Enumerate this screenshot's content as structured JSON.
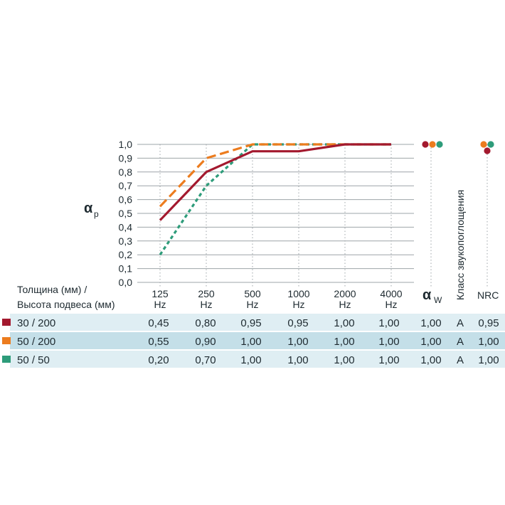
{
  "chart_data": {
    "type": "line",
    "ylabel": "α",
    "ylabel_sub": "p",
    "ylim": [
      0,
      1
    ],
    "y_ticks": [
      "0,0",
      "0,1",
      "0,2",
      "0,3",
      "0,4",
      "0,5",
      "0,6",
      "0,7",
      "0,8",
      "0,9",
      "1,0"
    ],
    "categories": [
      {
        "freq": "125",
        "unit": "Hz"
      },
      {
        "freq": "250",
        "unit": "Hz"
      },
      {
        "freq": "500",
        "unit": "Hz"
      },
      {
        "freq": "1000",
        "unit": "Hz"
      },
      {
        "freq": "2000",
        "unit": "Hz"
      },
      {
        "freq": "4000",
        "unit": "Hz"
      }
    ],
    "series": [
      {
        "name": "30 / 200",
        "color": "#a3192e",
        "dash": "solid",
        "values": [
          0.45,
          0.8,
          0.95,
          0.95,
          1.0,
          1.0
        ],
        "row": [
          "0,45",
          "0,80",
          "0,95",
          "0,95",
          "1,00",
          "1,00",
          "1,00",
          "A",
          "0,95"
        ]
      },
      {
        "name": "50 / 200",
        "color": "#ec7c1e",
        "dash": "dashed",
        "values": [
          0.55,
          0.9,
          1.0,
          1.0,
          1.0,
          1.0
        ],
        "row": [
          "0,55",
          "0,90",
          "1,00",
          "1,00",
          "1,00",
          "1,00",
          "1,00",
          "A",
          "1,00"
        ]
      },
      {
        "name": "50 / 50",
        "color": "#2e9c7a",
        "dash": "dotted",
        "values": [
          0.2,
          0.7,
          1.0,
          1.0,
          1.0,
          1.0
        ],
        "row": [
          "0,20",
          "0,70",
          "1,00",
          "1,00",
          "1,00",
          "1,00",
          "1,00",
          "A",
          "1,00"
        ]
      }
    ],
    "table_header": {
      "thickness_line1": "Толщина (мм) /",
      "thickness_line2": "Высота подвеса (мм)",
      "alpha_w": "α",
      "alpha_w_sub": "W",
      "class_label": "Класс звукопоглощения",
      "nrc_label": "NRC"
    }
  },
  "colors": {
    "grid": "#9ea4a8",
    "row_light": "#dfeef3",
    "row_dark": "#c4dfe8"
  }
}
